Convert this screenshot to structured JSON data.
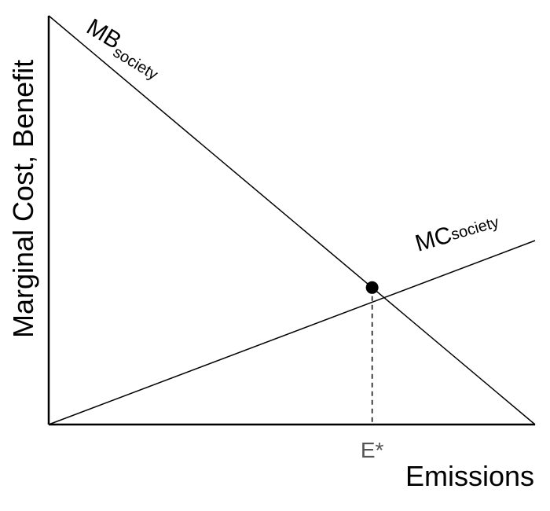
{
  "chart_data": {
    "type": "line",
    "ylabel": "Marginal Cost, Benefit",
    "xlabel": "Emissions",
    "xlim": [
      0,
      1
    ],
    "ylim": [
      0,
      1
    ],
    "series": [
      {
        "name": "MBsociety",
        "main": "MB",
        "sub": "society",
        "x": [
          0,
          1
        ],
        "y": [
          1,
          0
        ]
      },
      {
        "name": "MCsociety",
        "main": "MC",
        "sub": "society",
        "x": [
          0,
          1
        ],
        "y": [
          0,
          0.45
        ]
      }
    ],
    "equilibrium": {
      "label": "E*",
      "x": 0.665,
      "y": 0.335
    },
    "grid": false
  }
}
